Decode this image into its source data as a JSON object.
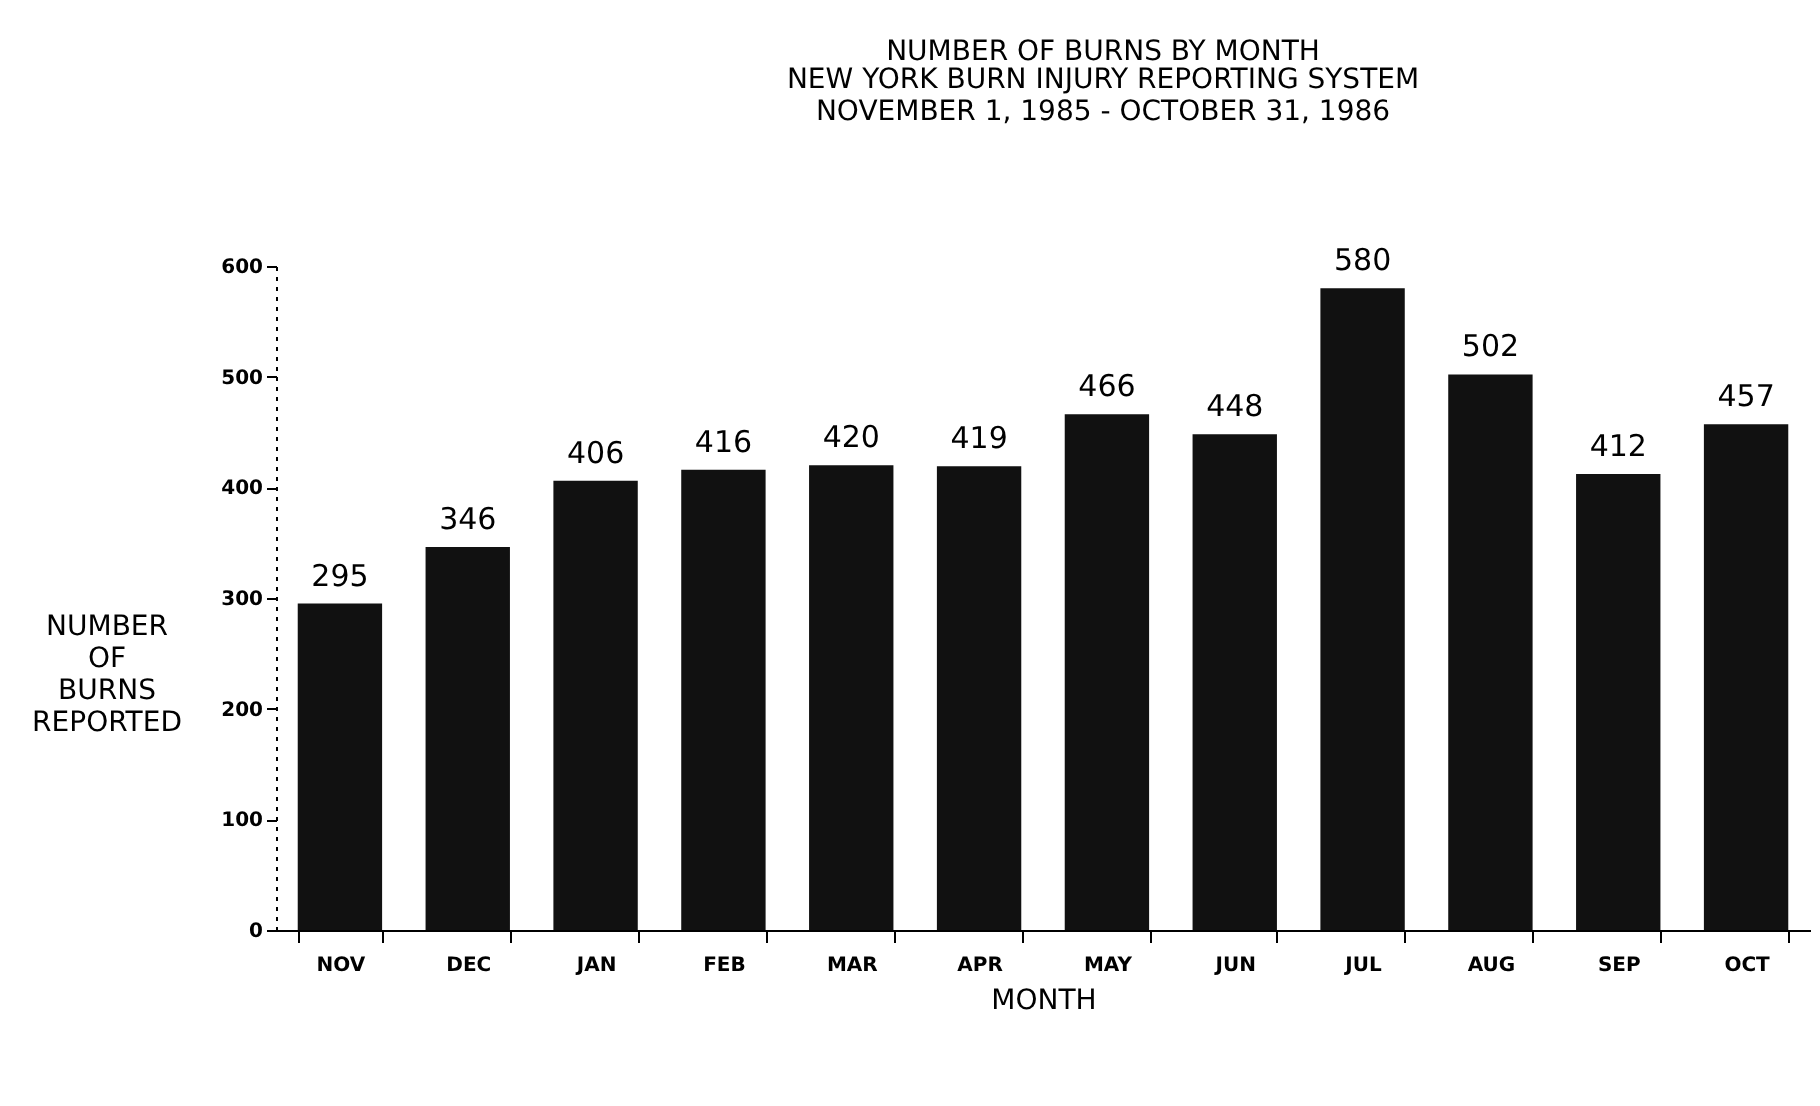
{
  "chart_data": {
    "type": "bar",
    "title": "NUMBER OF BURNS BY MONTH",
    "subtitle": [
      "NEW YORK BURN INJURY REPORTING SYSTEM",
      "NOVEMBER 1, 1985 - OCTOBER 31, 1986"
    ],
    "xlabel": "MONTH",
    "ylabel": "NUMBER OF BURNS REPORTED",
    "categories": [
      "NOV",
      "DEC",
      "JAN",
      "FEB",
      "MAR",
      "APR",
      "MAY",
      "JUN",
      "JUL",
      "AUG",
      "SEP",
      "OCT"
    ],
    "values": [
      295,
      346,
      406,
      416,
      420,
      419,
      466,
      448,
      580,
      502,
      412,
      457
    ],
    "color": "#111111",
    "ylim": [
      0,
      600
    ],
    "yticks": [
      0,
      100,
      200,
      300,
      400,
      500,
      600
    ],
    "data_labels": true,
    "grid": false
  }
}
